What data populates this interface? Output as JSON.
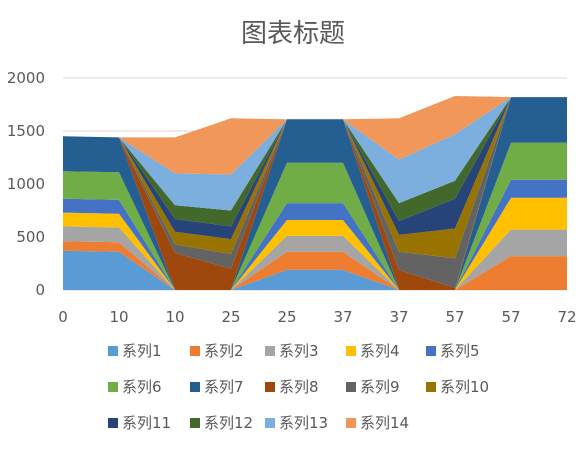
{
  "chart_data": {
    "type": "area",
    "title": "图表标题",
    "xlabel": "",
    "ylabel": "",
    "ylim": [
      0,
      2000
    ],
    "yticks": [
      "0",
      "500",
      "1000",
      "1500",
      "2000"
    ],
    "categories": [
      "0",
      "10",
      "10",
      "25",
      "25",
      "37",
      "37",
      "57",
      "57",
      "72"
    ],
    "grid": true,
    "legend_position": "bottom",
    "series": [
      {
        "name": "系列1",
        "color": "#5B9BD5",
        "values": [
          370,
          360,
          0,
          0,
          190,
          190,
          0,
          0,
          0,
          0
        ]
      },
      {
        "name": "系列2",
        "color": "#ED7D31",
        "values": [
          90,
          90,
          0,
          0,
          170,
          170,
          0,
          0,
          320,
          320
        ]
      },
      {
        "name": "系列3",
        "color": "#A5A5A5",
        "values": [
          140,
          140,
          0,
          0,
          150,
          150,
          0,
          0,
          250,
          250
        ]
      },
      {
        "name": "系列4",
        "color": "#FFC000",
        "values": [
          130,
          130,
          0,
          0,
          150,
          150,
          0,
          0,
          300,
          300
        ]
      },
      {
        "name": "系列5",
        "color": "#4472C4",
        "values": [
          130,
          130,
          0,
          0,
          160,
          160,
          0,
          0,
          170,
          170
        ]
      },
      {
        "name": "系列6",
        "color": "#70AD47",
        "values": [
          260,
          260,
          0,
          0,
          380,
          380,
          0,
          0,
          350,
          350
        ]
      },
      {
        "name": "系列7",
        "color": "#255E91",
        "values": [
          330,
          330,
          0,
          0,
          410,
          410,
          0,
          0,
          430,
          430
        ]
      },
      {
        "name": "系列8",
        "color": "#9E480E",
        "values": [
          0,
          0,
          350,
          200,
          0,
          0,
          190,
          20,
          0,
          0
        ]
      },
      {
        "name": "系列9",
        "color": "#636363",
        "values": [
          0,
          0,
          80,
          140,
          0,
          0,
          170,
          280,
          0,
          0
        ]
      },
      {
        "name": "系列10",
        "color": "#997300",
        "values": [
          0,
          0,
          120,
          140,
          0,
          0,
          160,
          280,
          0,
          0
        ]
      },
      {
        "name": "系列11",
        "color": "#264478",
        "values": [
          0,
          0,
          120,
          120,
          0,
          0,
          130,
          280,
          0,
          0
        ]
      },
      {
        "name": "系列12",
        "color": "#43682B",
        "values": [
          0,
          0,
          130,
          150,
          0,
          0,
          170,
          170,
          0,
          0
        ]
      },
      {
        "name": "系列13",
        "color": "#7CAFDD",
        "values": [
          0,
          0,
          300,
          340,
          0,
          0,
          410,
          440,
          0,
          0
        ]
      },
      {
        "name": "系列14",
        "color": "#F1975A",
        "values": [
          0,
          0,
          340,
          530,
          0,
          0,
          390,
          360,
          0,
          0
        ]
      }
    ]
  }
}
